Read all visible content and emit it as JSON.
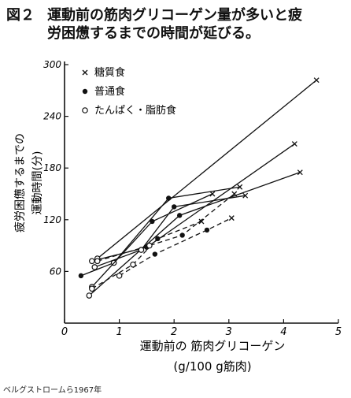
{
  "figure": {
    "number": "図２",
    "title_line1": "運動前の筋肉グリコーゲン量が多いと疲",
    "title_line2": "労困憊するまでの時間が延びる。"
  },
  "source_note": "ベルグストロームら1967年",
  "chart_data": {
    "type": "line",
    "xlabel_line1": "運動前の 筋肉グリコーゲン",
    "xlabel_line2": "(g/100 g筋肉)",
    "ylabel_line1": "疲労困憊するまでの",
    "ylabel_line2": "運動時間(分)",
    "xlim": [
      0,
      5
    ],
    "ylim": [
      0,
      300
    ],
    "x_ticks": [
      0,
      1,
      2,
      3,
      4,
      5
    ],
    "y_ticks": [
      60,
      120,
      180,
      240,
      300
    ],
    "y_tick_labels": [
      "60",
      "120",
      "180",
      "240",
      "300"
    ],
    "grid": false,
    "legend_position": "top-left",
    "legend": [
      {
        "marker": "x",
        "label": "糖質食"
      },
      {
        "marker": "filled-circle",
        "label": "普通食"
      },
      {
        "marker": "open-circle",
        "label": "たんぱく・脂肪食"
      }
    ],
    "subjects": [
      {
        "style": "solid",
        "points": [
          [
            0.3,
            55,
            "filled"
          ],
          [
            0.9,
            70,
            "open"
          ],
          [
            1.9,
            145,
            "filled"
          ],
          [
            3.2,
            158,
            "x"
          ]
        ]
      },
      {
        "style": "solid",
        "points": [
          [
            0.5,
            42,
            "open"
          ],
          [
            1.6,
            118,
            "filled"
          ],
          [
            2.7,
            150,
            "x"
          ]
        ]
      },
      {
        "style": "solid",
        "points": [
          [
            0.6,
            75,
            "open"
          ],
          [
            4.6,
            282,
            "x"
          ]
        ]
      },
      {
        "style": "solid",
        "points": [
          [
            0.5,
            72,
            "open"
          ],
          [
            1.5,
            88,
            "filled"
          ],
          [
            4.2,
            208,
            "x"
          ]
        ]
      },
      {
        "style": "solid",
        "points": [
          [
            0.45,
            32,
            "open"
          ],
          [
            2.1,
            125,
            "filled"
          ],
          [
            4.3,
            175,
            "x"
          ]
        ]
      },
      {
        "style": "solid",
        "points": [
          [
            0.55,
            65,
            "open"
          ],
          [
            1.4,
            85,
            "open"
          ],
          [
            2.0,
            135,
            "filled"
          ],
          [
            3.3,
            148,
            "x"
          ]
        ]
      },
      {
        "style": "dashed",
        "points": [
          [
            0.5,
            40,
            "open"
          ],
          [
            1.25,
            68,
            "open"
          ],
          [
            1.7,
            98,
            "filled"
          ],
          [
            2.5,
            118,
            "x"
          ]
        ]
      },
      {
        "style": "dashed",
        "points": [
          [
            1.0,
            55,
            "open"
          ],
          [
            1.65,
            80,
            "filled"
          ],
          [
            2.6,
            108,
            "filled"
          ],
          [
            3.05,
            122,
            "x"
          ]
        ]
      },
      {
        "style": "dashed",
        "points": [
          [
            0.6,
            72,
            "open"
          ],
          [
            1.55,
            90,
            "open"
          ],
          [
            2.15,
            102,
            "filled"
          ],
          [
            3.1,
            150,
            "x"
          ]
        ]
      }
    ]
  }
}
